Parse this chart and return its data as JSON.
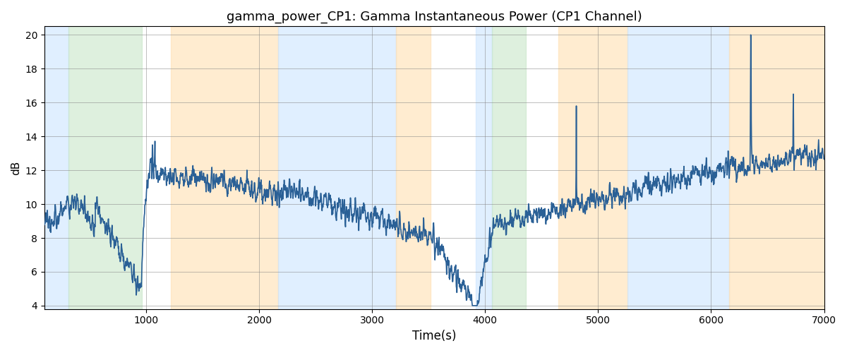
{
  "title": "gamma_power_CP1: Gamma Instantaneous Power (CP1 Channel)",
  "xlabel": "Time(s)",
  "ylabel": "dB",
  "xlim": [
    100,
    7000
  ],
  "ylim": [
    3.8,
    20.5
  ],
  "yticks": [
    4,
    6,
    8,
    10,
    12,
    14,
    16,
    18,
    20
  ],
  "xticks": [
    1000,
    2000,
    3000,
    4000,
    5000,
    6000,
    7000
  ],
  "line_color": "#2a6096",
  "line_width": 1.2,
  "regions": [
    {
      "start": 100,
      "end": 310,
      "color": "#cce5ff",
      "alpha": 0.6
    },
    {
      "start": 310,
      "end": 960,
      "color": "#c8e6c8",
      "alpha": 0.6
    },
    {
      "start": 1220,
      "end": 2170,
      "color": "#ffe0b2",
      "alpha": 0.6
    },
    {
      "start": 2170,
      "end": 3210,
      "color": "#cce5ff",
      "alpha": 0.6
    },
    {
      "start": 3210,
      "end": 3520,
      "color": "#ffe0b2",
      "alpha": 0.6
    },
    {
      "start": 3920,
      "end": 4060,
      "color": "#cce5ff",
      "alpha": 0.6
    },
    {
      "start": 4060,
      "end": 4360,
      "color": "#c8e6c8",
      "alpha": 0.6
    },
    {
      "start": 4650,
      "end": 5260,
      "color": "#ffe0b2",
      "alpha": 0.6
    },
    {
      "start": 5260,
      "end": 6160,
      "color": "#cce5ff",
      "alpha": 0.6
    },
    {
      "start": 6160,
      "end": 7050,
      "color": "#ffe0b2",
      "alpha": 0.6
    }
  ],
  "seed": 777,
  "n_points": 3000,
  "figsize": [
    12,
    5
  ],
  "dpi": 100
}
